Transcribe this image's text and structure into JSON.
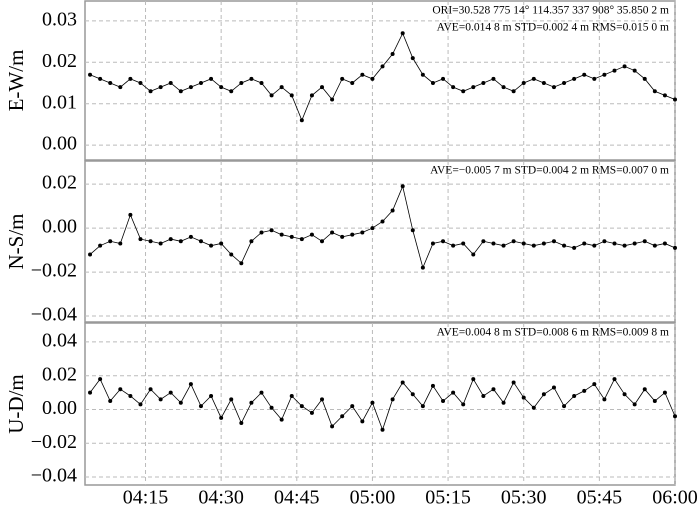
{
  "chart_data": [
    {
      "type": "scatter",
      "ylabel": "E-W/m",
      "annotations": [
        "ORI=30.528 775 14° 114.357 337 908° 35.850 2 m",
        "AVE=0.014 8 m STD=0.002 4 m RMS=0.015 0 m"
      ],
      "color": "#000000",
      "grid": true,
      "xlim": [
        "04:03",
        "06:00"
      ],
      "xticks": [
        "04:15",
        "04:30",
        "04:45",
        "05:00",
        "05:15",
        "05:30",
        "05:45",
        "06:00"
      ],
      "ylim": [
        -0.0036,
        0.0348
      ],
      "yticks": [
        {
          "value": 0,
          "label": "0.00"
        },
        0.01,
        0.02,
        0.03
      ],
      "x": [
        "04:04",
        "04:06",
        "04:08",
        "04:10",
        "04:12",
        "04:14",
        "04:16",
        "04:18",
        "04:20",
        "04:22",
        "04:24",
        "04:26",
        "04:28",
        "04:30",
        "04:32",
        "04:34",
        "04:36",
        "04:38",
        "04:40",
        "04:42",
        "04:44",
        "04:46",
        "04:48",
        "04:50",
        "04:52",
        "04:54",
        "04:56",
        "04:58",
        "05:00",
        "05:02",
        "05:04",
        "05:06",
        "05:08",
        "05:10",
        "05:12",
        "05:14",
        "05:16",
        "05:18",
        "05:20",
        "05:22",
        "05:24",
        "05:26",
        "05:28",
        "05:30",
        "05:32",
        "05:34",
        "05:36",
        "05:38",
        "05:40",
        "05:42",
        "05:44",
        "05:46",
        "05:48",
        "05:50",
        "05:52",
        "05:54",
        "05:56",
        "05:58",
        "06:00"
      ],
      "values": [
        0.017,
        0.016,
        0.015,
        0.014,
        0.016,
        0.015,
        0.013,
        0.014,
        0.015,
        0.013,
        0.014,
        0.015,
        0.016,
        0.014,
        0.013,
        0.015,
        0.016,
        0.015,
        0.012,
        0.014,
        0.012,
        0.006,
        0.012,
        0.014,
        0.011,
        0.016,
        0.015,
        0.017,
        0.016,
        0.019,
        0.022,
        0.027,
        0.021,
        0.017,
        0.015,
        0.016,
        0.014,
        0.013,
        0.014,
        0.015,
        0.016,
        0.014,
        0.013,
        0.015,
        0.016,
        0.015,
        0.014,
        0.015,
        0.016,
        0.017,
        0.016,
        0.017,
        0.018,
        0.019,
        0.018,
        0.016,
        0.013,
        0.012,
        0.011
      ]
    },
    {
      "type": "scatter",
      "ylabel": "N-S/m",
      "annotations": [
        "AVE=−0.005 7 m STD=0.004 2 m RMS=0.007 0 m"
      ],
      "color": "#000000",
      "grid": true,
      "xlim": [
        "04:03",
        "06:00"
      ],
      "xticks": [
        "04:15",
        "04:30",
        "04:45",
        "05:00",
        "05:15",
        "05:30",
        "05:45",
        "06:00"
      ],
      "ylim": [
        -0.0427,
        0.0305
      ],
      "yticks": [
        {
          "value": -0.04,
          "label": "−0.04"
        },
        {
          "value": -0.02,
          "label": "−0.02"
        },
        {
          "value": 0,
          "label": "0.00"
        },
        0.02
      ],
      "x": [
        "04:04",
        "04:06",
        "04:08",
        "04:10",
        "04:12",
        "04:14",
        "04:16",
        "04:18",
        "04:20",
        "04:22",
        "04:24",
        "04:26",
        "04:28",
        "04:30",
        "04:32",
        "04:34",
        "04:36",
        "04:38",
        "04:40",
        "04:42",
        "04:44",
        "04:46",
        "04:48",
        "04:50",
        "04:52",
        "04:54",
        "04:56",
        "04:58",
        "05:00",
        "05:02",
        "05:04",
        "05:06",
        "05:08",
        "05:10",
        "05:12",
        "05:14",
        "05:16",
        "05:18",
        "05:20",
        "05:22",
        "05:24",
        "05:26",
        "05:28",
        "05:30",
        "05:32",
        "05:34",
        "05:36",
        "05:38",
        "05:40",
        "05:42",
        "05:44",
        "05:46",
        "05:48",
        "05:50",
        "05:52",
        "05:54",
        "05:56",
        "05:58",
        "06:00"
      ],
      "values": [
        -0.012,
        -0.008,
        -0.006,
        -0.007,
        0.006,
        -0.005,
        -0.006,
        -0.007,
        -0.005,
        -0.006,
        -0.004,
        -0.006,
        -0.008,
        -0.007,
        -0.012,
        -0.016,
        -0.006,
        -0.002,
        -0.001,
        -0.003,
        -0.004,
        -0.005,
        -0.003,
        -0.006,
        -0.002,
        -0.004,
        -0.003,
        -0.002,
        0.0,
        0.003,
        0.008,
        0.019,
        -0.001,
        -0.018,
        -0.007,
        -0.006,
        -0.008,
        -0.007,
        -0.012,
        -0.006,
        -0.007,
        -0.008,
        -0.006,
        -0.007,
        -0.008,
        -0.007,
        -0.006,
        -0.008,
        -0.009,
        -0.007,
        -0.008,
        -0.006,
        -0.007,
        -0.008,
        -0.007,
        -0.006,
        -0.008,
        -0.007,
        -0.009
      ]
    },
    {
      "type": "scatter",
      "ylabel": "U-D/m",
      "annotations": [
        "AVE=0.004 8 m STD=0.008 6 m RMS=0.009 8 m"
      ],
      "color": "#000000",
      "grid": true,
      "xlim": [
        "04:03",
        "06:00"
      ],
      "xticks": [
        "04:15",
        "04:30",
        "04:45",
        "05:00",
        "05:15",
        "05:30",
        "05:45",
        "06:00"
      ],
      "ylim": [
        -0.0447,
        0.0512
      ],
      "yticks": [
        {
          "value": -0.04,
          "label": "−0.04"
        },
        {
          "value": -0.02,
          "label": "−0.02"
        },
        {
          "value": 0,
          "label": "0.00"
        },
        0.02,
        0.04
      ],
      "x": [
        "04:04",
        "04:06",
        "04:08",
        "04:10",
        "04:12",
        "04:14",
        "04:16",
        "04:18",
        "04:20",
        "04:22",
        "04:24",
        "04:26",
        "04:28",
        "04:30",
        "04:32",
        "04:34",
        "04:36",
        "04:38",
        "04:40",
        "04:42",
        "04:44",
        "04:46",
        "04:48",
        "04:50",
        "04:52",
        "04:54",
        "04:56",
        "04:58",
        "05:00",
        "05:02",
        "05:04",
        "05:06",
        "05:08",
        "05:10",
        "05:12",
        "05:14",
        "05:16",
        "05:18",
        "05:20",
        "05:22",
        "05:24",
        "05:26",
        "05:28",
        "05:30",
        "05:32",
        "05:34",
        "05:36",
        "05:38",
        "05:40",
        "05:42",
        "05:44",
        "05:46",
        "05:48",
        "05:50",
        "05:52",
        "05:54",
        "05:56",
        "05:58",
        "06:00"
      ],
      "values": [
        0.01,
        0.018,
        0.005,
        0.012,
        0.008,
        0.003,
        0.012,
        0.006,
        0.01,
        0.004,
        0.015,
        0.002,
        0.008,
        -0.005,
        0.006,
        -0.008,
        0.004,
        0.01,
        0.001,
        -0.006,
        0.008,
        0.002,
        -0.002,
        0.006,
        -0.01,
        -0.004,
        0.002,
        -0.007,
        0.004,
        -0.012,
        0.006,
        0.016,
        0.009,
        0.002,
        0.014,
        0.005,
        0.01,
        0.003,
        0.018,
        0.008,
        0.012,
        0.004,
        0.016,
        0.007,
        0.001,
        0.009,
        0.013,
        0.002,
        0.008,
        0.011,
        0.015,
        0.006,
        0.018,
        0.009,
        0.003,
        0.012,
        0.005,
        0.01,
        -0.004
      ]
    }
  ]
}
